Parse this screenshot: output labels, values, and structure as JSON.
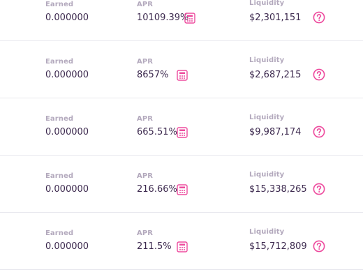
{
  "labels": {
    "earned": "Earned",
    "apr": "APR",
    "liquidity": "Liquidity"
  },
  "colors": {
    "accent": "#ed4b9e",
    "label": "#b3a9bd",
    "value": "#3d2a4f",
    "divider": "#e8e8ee"
  },
  "icons": {
    "calculator": "calculator-icon",
    "help": "help-circle-icon"
  },
  "farms": [
    {
      "earned": "0.000000",
      "apr": "10109.39%",
      "liquidity": "$2,301,151"
    },
    {
      "earned": "0.000000",
      "apr": "8657%",
      "liquidity": "$2,687,215"
    },
    {
      "earned": "0.000000",
      "apr": "665.51%",
      "liquidity": "$9,987,174"
    },
    {
      "earned": "0.000000",
      "apr": "216.66%",
      "liquidity": "$15,338,265"
    },
    {
      "earned": "0.000000",
      "apr": "211.5%",
      "liquidity": "$15,712,809"
    }
  ]
}
